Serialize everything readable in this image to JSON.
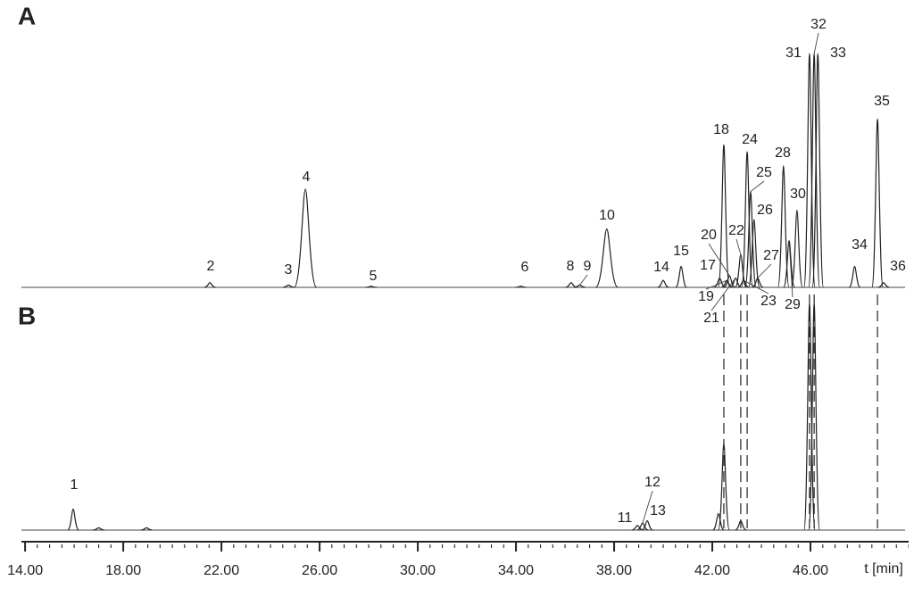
{
  "chart_data": {
    "type": "chromatogram",
    "panels": [
      {
        "label": "A",
        "peaks": [
          {
            "label": "2",
            "t": 21.53,
            "height": 2
          },
          {
            "label": "3",
            "t": 24.73,
            "height": 1
          },
          {
            "label": "4",
            "t": 25.42,
            "height": 42
          },
          {
            "label": "5",
            "t": 28.1,
            "height": 0.5
          },
          {
            "label": "6",
            "t": 34.2,
            "height": 0.5
          },
          {
            "label": "8",
            "t": 36.25,
            "height": 2
          },
          {
            "label": "9",
            "t": 36.6,
            "height": 1
          },
          {
            "label": "10",
            "t": 37.7,
            "height": 25
          },
          {
            "label": "14",
            "t": 40.0,
            "height": 3
          },
          {
            "label": "15",
            "t": 40.73,
            "height": 9
          },
          {
            "label": "17",
            "t": 42.3,
            "height": 4
          },
          {
            "label": "18",
            "t": 42.47,
            "height": 61
          },
          {
            "label": "19",
            "t": 42.6,
            "height": 3
          },
          {
            "label": "20",
            "t": 42.7,
            "height": 5
          },
          {
            "label": "21",
            "t": 42.95,
            "height": 4
          },
          {
            "label": "22",
            "t": 43.16,
            "height": 14
          },
          {
            "label": "23",
            "t": 43.27,
            "height": 3
          },
          {
            "label": "24",
            "t": 43.42,
            "height": 58
          },
          {
            "label": "25",
            "t": 43.56,
            "height": 41
          },
          {
            "label": "26",
            "t": 43.7,
            "height": 29
          },
          {
            "label": "27",
            "t": 43.85,
            "height": 4
          },
          {
            "label": "28",
            "t": 44.9,
            "height": 52
          },
          {
            "label": "29",
            "t": 45.13,
            "height": 20
          },
          {
            "label": "30",
            "t": 45.45,
            "height": 33
          },
          {
            "label": "31",
            "t": 45.96,
            "height": 100
          },
          {
            "label": "32",
            "t": 46.15,
            "height": 100
          },
          {
            "label": "33",
            "t": 46.3,
            "height": 100
          },
          {
            "label": "34",
            "t": 47.8,
            "height": 9
          },
          {
            "label": "35",
            "t": 48.73,
            "height": 72
          },
          {
            "label": "36",
            "t": 48.98,
            "height": 2
          }
        ]
      },
      {
        "label": "B",
        "peaks": [
          {
            "label": "1",
            "t": 15.96,
            "height": 9
          },
          {
            "label": null,
            "t": 17.0,
            "height": 1
          },
          {
            "label": null,
            "t": 18.95,
            "height": 1
          },
          {
            "label": "11",
            "t": 38.95,
            "height": 2
          },
          {
            "label": "12",
            "t": 39.16,
            "height": 3
          },
          {
            "label": "13",
            "t": 39.35,
            "height": 4
          },
          {
            "label": null,
            "t": 42.25,
            "height": 7
          },
          {
            "label": null,
            "t": 42.47,
            "height": 37
          },
          {
            "label": null,
            "t": 43.16,
            "height": 4
          },
          {
            "label": null,
            "t": 45.96,
            "height": 97
          },
          {
            "label": null,
            "t": 46.15,
            "height": 97
          }
        ]
      }
    ],
    "xlabel": "t [min]",
    "xlim": [
      13.85,
      50
    ],
    "ylim": [
      0,
      100
    ],
    "xticks": [
      {
        "value": 14,
        "label": "14.00"
      },
      {
        "value": 18,
        "label": "18.00"
      },
      {
        "value": 22,
        "label": "22.00"
      },
      {
        "value": 26,
        "label": "26.00"
      },
      {
        "value": 30,
        "label": "30.00"
      },
      {
        "value": 34,
        "label": "34.00"
      },
      {
        "value": 38,
        "label": "38.00"
      },
      {
        "value": 42,
        "label": "42.00"
      },
      {
        "value": 46,
        "label": "46.00"
      }
    ]
  }
}
